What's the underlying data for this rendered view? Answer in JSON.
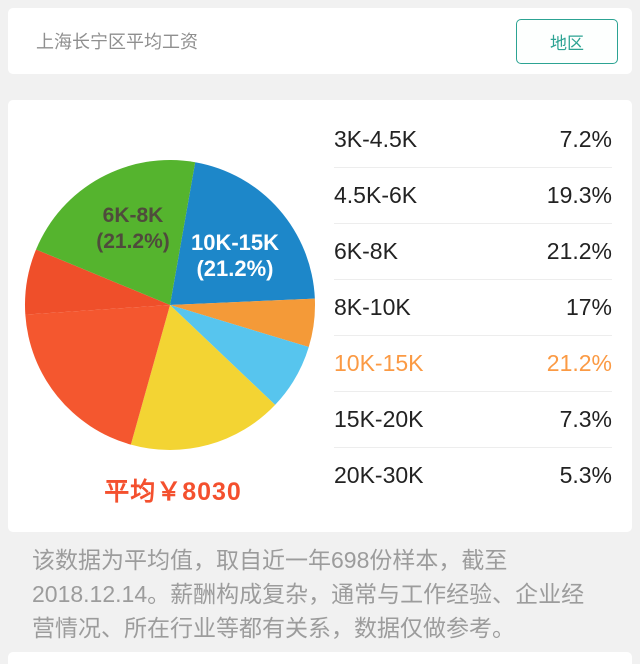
{
  "header": {
    "title": "上海长宁区平均工资",
    "region_button": "地区"
  },
  "chart_data": {
    "type": "pie",
    "title": "上海长宁区平均工资",
    "categories": [
      "3K-4.5K",
      "4.5K-6K",
      "6K-8K",
      "8K-10K",
      "10K-15K",
      "15K-20K",
      "20K-30K"
    ],
    "values": [
      7.2,
      19.3,
      21.2,
      17,
      21.2,
      7.3,
      5.3
    ],
    "unit": "%",
    "start_angle": 10,
    "slices": [
      {
        "name": "10K-15K",
        "value": 21.2,
        "color": "#1d87c9"
      },
      {
        "name": "20K-30K",
        "value": 5.3,
        "color": "#f49a38"
      },
      {
        "name": "15K-20K",
        "value": 7.3,
        "color": "#57c5ee"
      },
      {
        "name": "8K-10K",
        "value": 17,
        "color": "#f3d433"
      },
      {
        "name": "4.5K-6K",
        "value": 19.3,
        "color": "#f4572f"
      },
      {
        "name": "3K-4.5K",
        "value": 7.2,
        "color": "#ef4f2a"
      },
      {
        "name": "6K-8K",
        "value": 21.2,
        "color": "#55b42e"
      }
    ],
    "pie_labels": [
      {
        "line1": "6K-8K",
        "line2": "(21.2%)"
      },
      {
        "line1": "10K-15K",
        "line2": "(21.2%)"
      }
    ],
    "average_label": "平均￥8030",
    "highlight_category": "10K-15K",
    "legend_position": "right-table"
  },
  "table": {
    "rows": [
      {
        "range": "3K-4.5K",
        "percent": "7.2%"
      },
      {
        "range": "4.5K-6K",
        "percent": "19.3%"
      },
      {
        "range": "6K-8K",
        "percent": "21.2%"
      },
      {
        "range": "8K-10K",
        "percent": "17%"
      },
      {
        "range": "10K-15K",
        "percent": "21.2%",
        "highlighted": true
      },
      {
        "range": "15K-20K",
        "percent": "7.3%"
      },
      {
        "range": "20K-30K",
        "percent": "5.3%"
      }
    ]
  },
  "footnote": {
    "text": "该数据为平均值，取自近一年698份样本，截至2018.12.14。薪酬构成复杂，通常与工作经验、企业经营情况、所在行业等都有关系，数据仅做参考。"
  },
  "colors": {
    "accent_teal": "#2ca393",
    "highlight_orange": "#fb9a44",
    "average_red": "#f4502e"
  }
}
